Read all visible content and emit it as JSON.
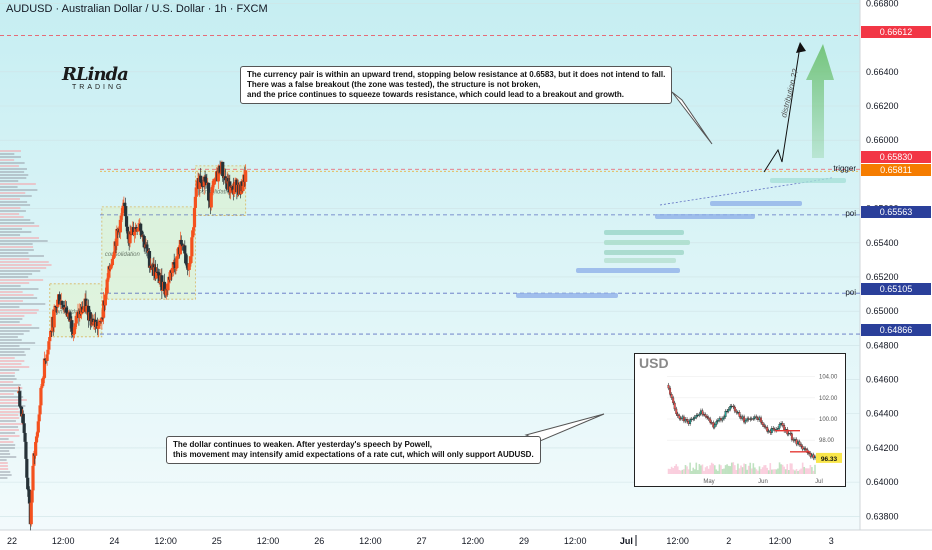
{
  "header": {
    "title": "AUDUSD · Australian Dollar / U.S. Dollar · 1h · FXCM"
  },
  "logo": {
    "main": "RLinda",
    "sub": "TRADING"
  },
  "notes": [
    {
      "lines": [
        "The currency pair is within an upward trend, stopping below resistance at 0.6583, but it does not intend to fall.",
        "There was a false breakout (the zone was tested), the structure is not broken,",
        "and the price continues to squeeze towards resistance, which could lead to a breakout and growth."
      ]
    },
    {
      "lines": [
        "The dollar continues to weaken. After yesterday's speech by Powell,",
        "this movement may intensify amid expectations of a rate cut, which will only support AUDUSD."
      ]
    }
  ],
  "colors": {
    "up": "#f4511e",
    "down": "#263238",
    "accent_red": "#f23645",
    "orange": "#f57c00",
    "grid": "#cfe3e6",
    "zone": "#dff0c8",
    "arrow": "#6cc070"
  },
  "chart_data": {
    "type": "candlestick",
    "symbol": "AUDUSD",
    "timeframe": "1h",
    "ylim": [
      0.6372,
      0.6682
    ],
    "y_ticks": [
      "0.66800",
      "0.66400",
      "0.66200",
      "0.66000",
      "0.65600",
      "0.65400",
      "0.65200",
      "0.65000",
      "0.64800",
      "0.64600",
      "0.64400",
      "0.64200",
      "0.64000",
      "0.63800"
    ],
    "x_ticks": [
      "22",
      "12:00",
      "24",
      "12:00",
      "25",
      "12:00",
      "26",
      "12:00",
      "27",
      "12:00",
      "29",
      "12:00",
      "Jul",
      "12:00",
      "2",
      "12:00",
      "3"
    ],
    "price_labels": [
      {
        "value": 0.66612,
        "text": "0.66612",
        "kind": "red"
      },
      {
        "value": 0.6583,
        "text": "0.65830",
        "kind": "red"
      },
      {
        "value": 0.65811,
        "text": "0.65811",
        "kind": "orange"
      },
      {
        "value": 0.65563,
        "text": "0.65563",
        "kind": "navy"
      },
      {
        "value": 0.65105,
        "text": "0.65105",
        "kind": "navy"
      },
      {
        "value": 0.64866,
        "text": "0.64866",
        "kind": "navy"
      }
    ],
    "level_labels": [
      {
        "value": 0.6582,
        "text": "trigger"
      },
      {
        "value": 0.6556,
        "text": "poi"
      },
      {
        "value": 0.651,
        "text": "poi"
      }
    ],
    "zones": [
      {
        "from": "Jun 23 12:00",
        "to": "Jun 25 23:00",
        "low": 0.6485,
        "high": 0.6516,
        "label": "consolidation"
      },
      {
        "from": "Jun 25 23:00",
        "to": "Jun 30 09:00",
        "low": 0.6507,
        "high": 0.6561,
        "label": "consolidation"
      },
      {
        "from": "Jun 30 09:00",
        "to": "Jul 2 18:00",
        "low": 0.6556,
        "high": 0.6585,
        "label": "consolidation"
      }
    ],
    "annotation": "distribution ??",
    "series": [
      {
        "name": "AUDUSD",
        "keypoints": [
          [
            "Jun 22 00:00",
            0.6452
          ],
          [
            "Jun 22 06:00",
            0.6438
          ],
          [
            "Jun 22 10:00",
            0.6405
          ],
          [
            "Jun 22 14:00",
            0.6378
          ],
          [
            "Jun 22 18:00",
            0.6415
          ],
          [
            "Jun 22 22:00",
            0.643
          ],
          [
            "Jun 23 04:00",
            0.6462
          ],
          [
            "Jun 23 10:00",
            0.648
          ],
          [
            "Jun 23 16:00",
            0.6495
          ],
          [
            "Jun 23 22:00",
            0.6508
          ],
          [
            "Jun 24 06:00",
            0.6502
          ],
          [
            "Jun 24 14:00",
            0.649
          ],
          [
            "Jun 24 20:00",
            0.6497
          ],
          [
            "Jun 25 04:00",
            0.6503
          ],
          [
            "Jun 25 12:00",
            0.6495
          ],
          [
            "Jun 25 20:00",
            0.649
          ],
          [
            "Jun 26 02:00",
            0.6506
          ],
          [
            "Jun 26 08:00",
            0.6525
          ],
          [
            "Jun 26 14:00",
            0.654
          ],
          [
            "Jun 26 20:00",
            0.6552
          ],
          [
            "Jun 27 00:00",
            0.656
          ],
          [
            "Jun 27 06:00",
            0.6543
          ],
          [
            "Jun 27 12:00",
            0.6548
          ],
          [
            "Jun 27 18:00",
            0.6552
          ],
          [
            "Jun 28 00:00",
            0.6538
          ],
          [
            "Jun 28 06:00",
            0.6528
          ],
          [
            "Jun 28 12:00",
            0.6522
          ],
          [
            "Jun 29 00:00",
            0.6512
          ],
          [
            "Jun 29 06:00",
            0.6525
          ],
          [
            "Jun 29 12:00",
            0.653
          ],
          [
            "Jun 29 18:00",
            0.6542
          ],
          [
            "Jun 29 22:00",
            0.6527
          ],
          [
            "Jun 30 02:00",
            0.6524
          ],
          [
            "Jun 30 06:00",
            0.6545
          ],
          [
            "Jun 30 10:00",
            0.657
          ],
          [
            "Jun 30 14:00",
            0.6578
          ],
          [
            "Jun 30 20:00",
            0.6577
          ],
          [
            "Jul 1 02:00",
            0.6565
          ],
          [
            "Jul 1 08:00",
            0.6577
          ],
          [
            "Jul 1 14:00",
            0.6585
          ],
          [
            "Jul 1 20:00",
            0.6575
          ],
          [
            "Jul 2 02:00",
            0.657
          ],
          [
            "Jul 2 08:00",
            0.6574
          ],
          [
            "Jul 2 12:00",
            0.657
          ],
          [
            "Jul 2 18:00",
            0.658
          ]
        ]
      }
    ],
    "inset": {
      "title": "USD",
      "ylim": [
        95,
        105
      ],
      "y_ticks": [
        "104.00",
        "102.00",
        "100.00",
        "98.00"
      ],
      "x_ticks": [
        "May",
        "Jun",
        "Jul"
      ],
      "last": "96.33",
      "keypoints": [
        [
          0,
          103.2
        ],
        [
          6,
          100.4
        ],
        [
          14,
          99.7
        ],
        [
          22,
          100.6
        ],
        [
          30,
          99.4
        ],
        [
          36,
          100.2
        ],
        [
          42,
          101.2
        ],
        [
          50,
          99.9
        ],
        [
          58,
          100.3
        ],
        [
          66,
          98.8
        ],
        [
          74,
          99.4
        ],
        [
          82,
          98.1
        ],
        [
          90,
          97.0
        ],
        [
          96,
          96.3
        ]
      ]
    }
  }
}
